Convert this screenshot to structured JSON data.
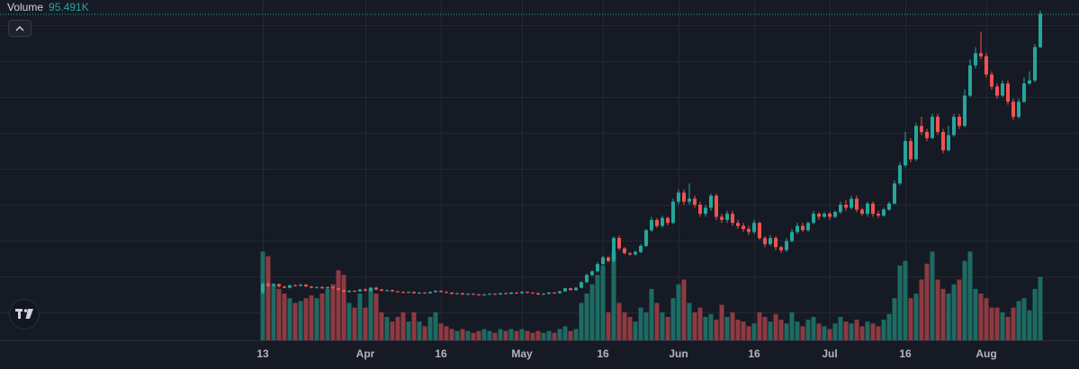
{
  "legend": {
    "label": "Volume",
    "value": "95.491K"
  },
  "colors": {
    "up": "#26a69a",
    "down": "#ef5350",
    "up_vol": "#1d6b63",
    "down_vol": "#8e3a41",
    "grid": "#242833",
    "axis_text": "#b2b5be",
    "bg": "#161a25"
  },
  "icons": {
    "collapse": "chevron-up-icon",
    "logo": "tradingview-logo-icon"
  },
  "chart_data": {
    "type": "candlestick",
    "x_ticks": [
      "13",
      "Apr",
      "16",
      "May",
      "16",
      "Jun",
      "16",
      "Jul",
      "16",
      "Aug"
    ],
    "x_tick_bars": [
      0,
      19,
      33,
      48,
      63,
      77,
      91,
      105,
      119,
      134
    ],
    "grid": true,
    "volume_overlay": true,
    "last_volume": "95.491K",
    "candles": [
      [
        1.5,
        3.0,
        1.2,
        3.2,
        0.95
      ],
      [
        3.0,
        2.6,
        2.4,
        3.2,
        0.9
      ],
      [
        2.6,
        2.9,
        2.5,
        3.1,
        0.6
      ],
      [
        2.9,
        2.5,
        2.3,
        3.0,
        0.55
      ],
      [
        2.5,
        2.3,
        2.2,
        2.6,
        0.5
      ],
      [
        2.3,
        2.7,
        2.2,
        2.8,
        0.45
      ],
      [
        2.7,
        2.6,
        2.5,
        2.9,
        0.4
      ],
      [
        2.6,
        2.8,
        2.5,
        2.9,
        0.42
      ],
      [
        2.8,
        2.5,
        2.4,
        2.9,
        0.45
      ],
      [
        2.5,
        2.3,
        2.2,
        2.6,
        0.48
      ],
      [
        2.3,
        2.4,
        2.2,
        2.5,
        0.45
      ],
      [
        2.4,
        2.2,
        2.1,
        2.5,
        0.5
      ],
      [
        2.2,
        2.4,
        2.1,
        2.5,
        0.55
      ],
      [
        2.4,
        2.2,
        2.1,
        2.5,
        0.6
      ],
      [
        2.2,
        1.9,
        1.8,
        2.3,
        0.75
      ],
      [
        1.9,
        1.6,
        1.5,
        2.0,
        0.7
      ],
      [
        1.6,
        1.8,
        1.5,
        1.9,
        0.4
      ],
      [
        1.8,
        1.7,
        1.6,
        1.9,
        0.35
      ],
      [
        1.7,
        2.0,
        1.6,
        2.1,
        0.5
      ],
      [
        2.0,
        1.8,
        1.7,
        2.2,
        0.35
      ],
      [
        1.8,
        2.3,
        1.7,
        2.4,
        0.55
      ],
      [
        2.3,
        2.0,
        1.9,
        2.5,
        0.5
      ],
      [
        2.0,
        1.8,
        1.7,
        2.1,
        0.3
      ],
      [
        1.8,
        1.9,
        1.7,
        2.0,
        0.25
      ],
      [
        1.9,
        1.7,
        1.6,
        2.0,
        0.2
      ],
      [
        1.7,
        1.6,
        1.5,
        1.8,
        0.25
      ],
      [
        1.6,
        1.5,
        1.4,
        1.7,
        0.3
      ],
      [
        1.5,
        1.6,
        1.4,
        1.7,
        0.2
      ],
      [
        1.6,
        1.4,
        1.3,
        1.7,
        0.3
      ],
      [
        1.4,
        1.5,
        1.3,
        1.6,
        0.2
      ],
      [
        1.5,
        1.4,
        1.3,
        1.6,
        0.15
      ],
      [
        1.4,
        1.6,
        1.3,
        1.7,
        0.25
      ],
      [
        1.6,
        1.8,
        1.5,
        1.9,
        0.3
      ],
      [
        1.8,
        1.6,
        1.5,
        1.9,
        0.18
      ],
      [
        1.6,
        1.5,
        1.4,
        1.7,
        0.15
      ],
      [
        1.5,
        1.3,
        1.2,
        1.6,
        0.12
      ],
      [
        1.3,
        1.4,
        1.2,
        1.5,
        0.1
      ],
      [
        1.4,
        1.2,
        1.1,
        1.5,
        0.12
      ],
      [
        1.2,
        1.3,
        1.1,
        1.4,
        0.1
      ],
      [
        1.3,
        1.2,
        1.1,
        1.4,
        0.08
      ],
      [
        1.2,
        1.1,
        1.0,
        1.3,
        0.1
      ],
      [
        1.1,
        1.2,
        1.0,
        1.3,
        0.12
      ],
      [
        1.2,
        1.3,
        1.1,
        1.4,
        0.1
      ],
      [
        1.3,
        1.2,
        1.1,
        1.4,
        0.08
      ],
      [
        1.2,
        1.4,
        1.1,
        1.5,
        0.12
      ],
      [
        1.4,
        1.3,
        1.2,
        1.5,
        0.1
      ],
      [
        1.3,
        1.5,
        1.2,
        1.6,
        0.12
      ],
      [
        1.5,
        1.4,
        1.3,
        1.6,
        0.1
      ],
      [
        1.4,
        1.6,
        1.3,
        1.7,
        0.12
      ],
      [
        1.6,
        1.5,
        1.4,
        1.7,
        0.1
      ],
      [
        1.5,
        1.4,
        1.3,
        1.6,
        0.08
      ],
      [
        1.4,
        1.2,
        1.1,
        1.5,
        0.1
      ],
      [
        1.2,
        1.3,
        1.1,
        1.4,
        0.08
      ],
      [
        1.3,
        1.5,
        1.2,
        1.6,
        0.1
      ],
      [
        1.5,
        1.4,
        1.3,
        1.6,
        0.08
      ],
      [
        1.4,
        1.7,
        1.3,
        1.8,
        0.12
      ],
      [
        1.7,
        2.2,
        1.6,
        2.3,
        0.15
      ],
      [
        2.2,
        1.9,
        1.8,
        2.3,
        0.1
      ],
      [
        1.9,
        2.3,
        1.8,
        2.4,
        0.12
      ],
      [
        2.3,
        3.2,
        2.2,
        3.4,
        0.4
      ],
      [
        3.2,
        4.4,
        3.1,
        4.6,
        0.5
      ],
      [
        4.4,
        5.0,
        4.2,
        5.2,
        0.6
      ],
      [
        5.0,
        6.2,
        4.8,
        6.5,
        0.7
      ],
      [
        6.2,
        7.3,
        6.0,
        7.6,
        0.8
      ],
      [
        7.3,
        6.7,
        6.5,
        7.5,
        0.3
      ],
      [
        6.7,
        10.5,
        6.5,
        10.8,
        0.95
      ],
      [
        10.5,
        8.8,
        8.5,
        10.9,
        0.4
      ],
      [
        8.8,
        8.0,
        7.8,
        9.0,
        0.3
      ],
      [
        8.0,
        7.8,
        7.6,
        8.2,
        0.25
      ],
      [
        7.8,
        8.2,
        7.6,
        8.4,
        0.2
      ],
      [
        8.2,
        9.2,
        8.0,
        9.5,
        0.35
      ],
      [
        9.2,
        11.8,
        9.0,
        12.0,
        0.3
      ],
      [
        11.8,
        13.5,
        11.5,
        14.0,
        0.55
      ],
      [
        13.5,
        12.5,
        12.2,
        13.8,
        0.4
      ],
      [
        12.5,
        13.8,
        12.2,
        14.2,
        0.3
      ],
      [
        13.8,
        13.0,
        12.6,
        14.0,
        0.25
      ],
      [
        13.0,
        16.5,
        12.8,
        17.0,
        0.45
      ],
      [
        16.5,
        18.0,
        16.0,
        18.5,
        0.6
      ],
      [
        18.0,
        16.5,
        16.0,
        18.5,
        0.65
      ],
      [
        16.5,
        17.0,
        16.0,
        19.5,
        0.4
      ],
      [
        17.0,
        16.0,
        15.5,
        17.5,
        0.3
      ],
      [
        16.0,
        14.5,
        14.0,
        16.5,
        0.35
      ],
      [
        14.5,
        15.5,
        14.0,
        16.0,
        0.25
      ],
      [
        15.5,
        17.5,
        15.0,
        17.8,
        0.28
      ],
      [
        17.5,
        14.0,
        13.5,
        17.8,
        0.22
      ],
      [
        14.0,
        13.5,
        13.0,
        14.5,
        0.38
      ],
      [
        13.5,
        14.5,
        13.0,
        15.0,
        0.25
      ],
      [
        14.5,
        13.0,
        12.5,
        15.0,
        0.3
      ],
      [
        13.0,
        12.5,
        12.0,
        13.5,
        0.22
      ],
      [
        12.5,
        12.0,
        11.5,
        13.0,
        0.2
      ],
      [
        12.0,
        11.5,
        11.0,
        12.5,
        0.15
      ],
      [
        11.5,
        13.0,
        11.2,
        13.5,
        0.18
      ],
      [
        13.0,
        10.5,
        10.2,
        13.2,
        0.3
      ],
      [
        10.5,
        9.5,
        9.0,
        10.8,
        0.25
      ],
      [
        9.5,
        10.5,
        9.2,
        11.0,
        0.2
      ],
      [
        10.5,
        9.0,
        8.5,
        10.8,
        0.28
      ],
      [
        9.0,
        8.5,
        8.0,
        9.2,
        0.22
      ],
      [
        8.5,
        10.0,
        8.2,
        10.5,
        0.18
      ],
      [
        10.0,
        11.5,
        9.8,
        12.0,
        0.3
      ],
      [
        11.5,
        12.5,
        11.2,
        13.0,
        0.2
      ],
      [
        12.5,
        11.8,
        11.5,
        13.0,
        0.15
      ],
      [
        11.8,
        13.0,
        11.5,
        13.2,
        0.22
      ],
      [
        13.0,
        14.5,
        12.8,
        15.0,
        0.25
      ],
      [
        14.5,
        14.0,
        13.5,
        14.8,
        0.18
      ],
      [
        14.0,
        14.5,
        13.8,
        14.8,
        0.15
      ],
      [
        14.5,
        14.0,
        13.5,
        14.8,
        0.12
      ],
      [
        14.0,
        14.8,
        13.8,
        15.0,
        0.18
      ],
      [
        14.8,
        16.0,
        14.5,
        16.5,
        0.25
      ],
      [
        16.0,
        15.5,
        15.0,
        16.8,
        0.2
      ],
      [
        15.5,
        17.0,
        15.2,
        17.5,
        0.18
      ],
      [
        17.0,
        15.2,
        14.8,
        17.5,
        0.22
      ],
      [
        15.2,
        14.5,
        14.2,
        15.5,
        0.15
      ],
      [
        14.5,
        16.2,
        14.0,
        16.5,
        0.2
      ],
      [
        16.2,
        14.5,
        14.0,
        16.5,
        0.18
      ],
      [
        14.5,
        14.2,
        13.8,
        15.0,
        0.15
      ],
      [
        14.2,
        15.2,
        14.0,
        15.5,
        0.22
      ],
      [
        15.2,
        16.2,
        15.0,
        16.5,
        0.28
      ],
      [
        16.2,
        19.5,
        16.0,
        20.0,
        0.45
      ],
      [
        19.5,
        22.5,
        19.2,
        23.0,
        0.8
      ],
      [
        22.5,
        26.5,
        22.2,
        28.0,
        0.85
      ],
      [
        26.5,
        23.5,
        23.0,
        27.0,
        0.45
      ],
      [
        23.5,
        29.0,
        23.2,
        29.5,
        0.5
      ],
      [
        29.0,
        28.0,
        27.5,
        30.5,
        0.65
      ],
      [
        28.0,
        27.0,
        26.5,
        28.5,
        0.82
      ],
      [
        27.0,
        30.5,
        26.8,
        31.0,
        0.95
      ],
      [
        30.5,
        28.0,
        27.5,
        31.0,
        0.65
      ],
      [
        28.0,
        25.0,
        24.5,
        28.5,
        0.55
      ],
      [
        25.0,
        27.5,
        24.8,
        29.0,
        0.5
      ],
      [
        27.5,
        30.5,
        27.2,
        31.0,
        0.6
      ],
      [
        30.5,
        29.0,
        28.5,
        31.0,
        0.65
      ],
      [
        29.0,
        34.0,
        28.8,
        35.0,
        0.85
      ],
      [
        34.0,
        39.0,
        33.8,
        40.0,
        0.95
      ],
      [
        39.0,
        41.0,
        38.5,
        42.0,
        0.55
      ],
      [
        41.0,
        40.5,
        40.0,
        44.5,
        0.5
      ],
      [
        40.5,
        37.5,
        37.0,
        41.0,
        0.45
      ],
      [
        37.5,
        35.5,
        35.0,
        38.0,
        0.35
      ],
      [
        35.5,
        34.0,
        33.5,
        36.0,
        0.35
      ],
      [
        34.0,
        36.0,
        33.8,
        36.5,
        0.3
      ],
      [
        36.0,
        33.0,
        32.5,
        36.5,
        0.25
      ],
      [
        33.0,
        30.5,
        30.0,
        33.5,
        0.35
      ],
      [
        30.5,
        33.0,
        30.2,
        33.5,
        0.42
      ],
      [
        33.0,
        36.0,
        32.8,
        37.0,
        0.45
      ],
      [
        36.0,
        36.5,
        35.8,
        38.0,
        0.32
      ],
      [
        36.5,
        42.0,
        36.2,
        42.5,
        0.55
      ],
      [
        42.0,
        47.5,
        41.8,
        48.0,
        0.68
      ]
    ],
    "price_range": [
      0,
      48
    ],
    "volume_range": [
      0,
      1
    ]
  }
}
